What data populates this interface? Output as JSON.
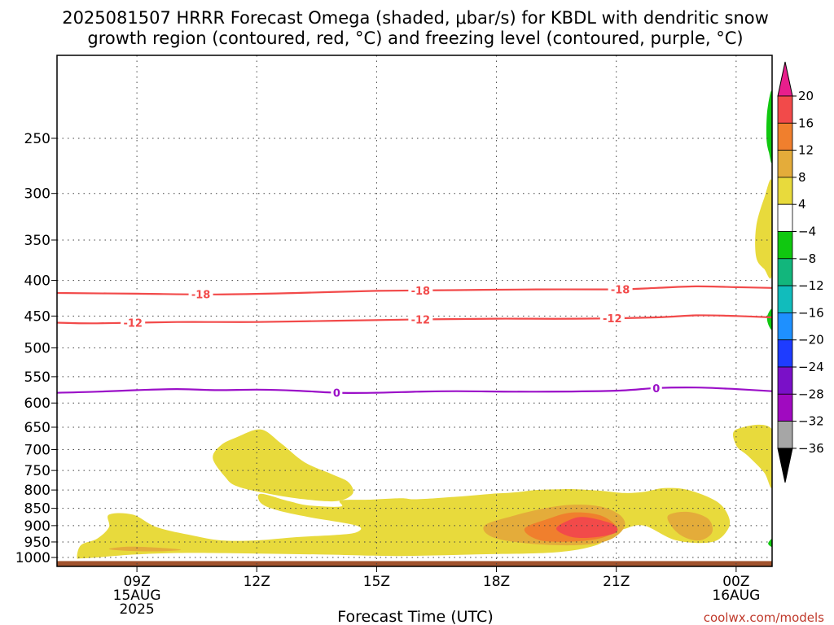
{
  "title_line1": "2025081507 HRRR Forecast Omega (shaded, μbar/s) for KBDL with dendritic snow",
  "title_line2": "growth region (contoured, red, °C) and freezing level (contoured, purple, °C)",
  "credit": "coolwx.com/models",
  "chart_data": {
    "type": "contour",
    "title": "2025081507 HRRR Forecast Omega (shaded, μbar/s) for KBDL with dendritic snow growth region (contoured, red, °C) and freezing level (contoured, purple, °C)",
    "xlabel": "Forecast Time (UTC)",
    "ylabel": "",
    "xlim": [
      7,
      24.9
    ],
    "ylim": [
      1030,
      190
    ],
    "y_ticks": [
      250,
      300,
      350,
      400,
      450,
      500,
      550,
      600,
      650,
      700,
      750,
      800,
      850,
      900,
      950,
      1000
    ],
    "x_ticks": [
      {
        "hour": 9,
        "lines": [
          "09Z",
          "15AUG",
          "2025"
        ]
      },
      {
        "hour": 12,
        "lines": [
          "12Z"
        ]
      },
      {
        "hour": 15,
        "lines": [
          "15Z"
        ]
      },
      {
        "hour": 18,
        "lines": [
          "18Z"
        ]
      },
      {
        "hour": 21,
        "lines": [
          "21Z"
        ]
      },
      {
        "hour": 24,
        "lines": [
          "00Z",
          "16AUG"
        ]
      }
    ],
    "grid": true,
    "colorbar": {
      "labels": [
        "20",
        "16",
        "12",
        "8",
        "4",
        "−4",
        "−8",
        "−12",
        "−16",
        "−20",
        "−24",
        "−28",
        "−32",
        "−36"
      ],
      "colors": [
        "#e81e8c",
        "#f24a4a",
        "#f07f2d",
        "#e4ac3a",
        "#e8da3c",
        "#ffffff",
        "#10c810",
        "#12b67c",
        "#11bcbc",
        "#1e90ff",
        "#1e3cff",
        "#7a10c8",
        "#a00ac0",
        "#a6a6a6",
        "#000000"
      ]
    },
    "contour_lines": [
      {
        "label": "-18",
        "color": "#f24a4a",
        "points": [
          [
            7,
            417
          ],
          [
            9,
            418
          ],
          [
            11,
            419
          ],
          [
            13,
            417
          ],
          [
            15,
            414
          ],
          [
            17,
            413
          ],
          [
            19,
            412
          ],
          [
            21,
            412
          ],
          [
            22,
            410
          ],
          [
            23,
            408
          ],
          [
            24,
            409
          ],
          [
            24.9,
            410
          ]
        ],
        "label_at": [
          10.6,
          16.1,
          21.1
        ]
      },
      {
        "label": "-12",
        "color": "#f24a4a",
        "points": [
          [
            7,
            460
          ],
          [
            8,
            461
          ],
          [
            10,
            459
          ],
          [
            12,
            459
          ],
          [
            14,
            457
          ],
          [
            16,
            455
          ],
          [
            18,
            454
          ],
          [
            20,
            454
          ],
          [
            22,
            452
          ],
          [
            23,
            449
          ],
          [
            24,
            450
          ],
          [
            24.9,
            452
          ]
        ],
        "label_at": [
          8.9,
          16.1,
          20.9
        ]
      },
      {
        "label": "0",
        "color": "#9b10c8",
        "points": [
          [
            7,
            580
          ],
          [
            8,
            578
          ],
          [
            9,
            575
          ],
          [
            10,
            573
          ],
          [
            11,
            575
          ],
          [
            12,
            574
          ],
          [
            13,
            576
          ],
          [
            14,
            580
          ],
          [
            15,
            580
          ],
          [
            16,
            578
          ],
          [
            17,
            577
          ],
          [
            19,
            578
          ],
          [
            21,
            576
          ],
          [
            22,
            571
          ],
          [
            23,
            570
          ],
          [
            24,
            573
          ],
          [
            24.9,
            577
          ]
        ],
        "label_at": [
          14.0,
          22.0
        ]
      }
    ],
    "shaded_regions": [
      {
        "level": "4 to 8",
        "color": "#e8da3c",
        "points": [
          [
            7.5,
            1000
          ],
          [
            7.6,
            960
          ],
          [
            8,
            940
          ],
          [
            8.3,
            905
          ],
          [
            8.3,
            868
          ],
          [
            8.9,
            868
          ],
          [
            9.5,
            905
          ],
          [
            10.4,
            930
          ],
          [
            11.1,
            945
          ],
          [
            12,
            945
          ],
          [
            13.0,
            935
          ],
          [
            14.0,
            928
          ],
          [
            14.5,
            920
          ],
          [
            14.5,
            900
          ],
          [
            13.3,
            875
          ],
          [
            12.5,
            855
          ],
          [
            12.1,
            835
          ],
          [
            12.1,
            810
          ],
          [
            12.8,
            830
          ],
          [
            13.3,
            842
          ],
          [
            14.1,
            845
          ],
          [
            14.1,
            828
          ],
          [
            14.8,
            826
          ],
          [
            15.6,
            822
          ],
          [
            16.0,
            825
          ],
          [
            17.0,
            818
          ],
          [
            17.9,
            810
          ],
          [
            18.4,
            807
          ],
          [
            19.0,
            800
          ],
          [
            19.6,
            798
          ],
          [
            20.0,
            798
          ],
          [
            20.6,
            802
          ],
          [
            21.2,
            808
          ],
          [
            21.7,
            805
          ],
          [
            22.2,
            795
          ],
          [
            22.8,
            800
          ],
          [
            23.5,
            830
          ],
          [
            23.8,
            870
          ],
          [
            23.8,
            910
          ],
          [
            23.4,
            950
          ],
          [
            22.5,
            945
          ],
          [
            21.7,
            900
          ],
          [
            21.2,
            910
          ],
          [
            20.8,
            930
          ],
          [
            20.5,
            960
          ],
          [
            19.5,
            983
          ],
          [
            17.5,
            990
          ],
          [
            15.5,
            995
          ],
          [
            13.5,
            990
          ],
          [
            10.5,
            985
          ],
          [
            9.0,
            990
          ],
          [
            8.0,
            1000
          ],
          [
            7.6,
            1003
          ]
        ]
      },
      {
        "level": "4 to 8",
        "color": "#e8da3c",
        "points": [
          [
            10.9,
            720
          ],
          [
            11.1,
            690
          ],
          [
            11.5,
            672
          ],
          [
            12.1,
            655
          ],
          [
            12.6,
            685
          ],
          [
            13.2,
            730
          ],
          [
            13.9,
            760
          ],
          [
            14.3,
            780
          ],
          [
            14.4,
            810
          ],
          [
            14.0,
            830
          ],
          [
            13.2,
            825
          ],
          [
            12.3,
            810
          ],
          [
            11.5,
            790
          ],
          [
            11.2,
            765
          ]
        ]
      },
      {
        "level": "4 to 8",
        "color": "#e8da3c",
        "points": [
          [
            24.0,
            655
          ],
          [
            24.9,
            655
          ],
          [
            24.9,
            790
          ],
          [
            24.7,
            755
          ],
          [
            24.3,
            715
          ],
          [
            24.0,
            690
          ]
        ]
      },
      {
        "level": "4 to 8",
        "color": "#e8da3c",
        "points": [
          [
            24.9,
            290
          ],
          [
            24.7,
            305
          ],
          [
            24.5,
            335
          ],
          [
            24.5,
            370
          ],
          [
            24.7,
            385
          ],
          [
            24.9,
            390
          ]
        ]
      },
      {
        "level": "8 to 12",
        "color": "#e4ac3a",
        "points": [
          [
            17.7,
            900
          ],
          [
            18.4,
            872
          ],
          [
            19.2,
            850
          ],
          [
            19.9,
            840
          ],
          [
            20.6,
            845
          ],
          [
            21.1,
            870
          ],
          [
            21.2,
            905
          ],
          [
            20.8,
            945
          ],
          [
            20.0,
            960
          ],
          [
            18.8,
            955
          ],
          [
            17.9,
            935
          ]
        ]
      },
      {
        "level": "8 to 12",
        "color": "#e4ac3a",
        "points": [
          [
            8.3,
            972
          ],
          [
            8.8,
            965
          ],
          [
            9.5,
            968
          ],
          [
            10.1,
            975
          ],
          [
            9.5,
            980
          ],
          [
            8.7,
            978
          ]
        ]
      },
      {
        "level": "8 to 12",
        "color": "#e4ac3a",
        "points": [
          [
            22.3,
            870
          ],
          [
            22.8,
            860
          ],
          [
            23.3,
            880
          ],
          [
            23.4,
            920
          ],
          [
            23.1,
            945
          ],
          [
            22.7,
            935
          ],
          [
            22.4,
            905
          ]
        ]
      },
      {
        "level": "12 to 16",
        "color": "#f07f2d",
        "points": [
          [
            18.7,
            910
          ],
          [
            19.3,
            880
          ],
          [
            19.9,
            862
          ],
          [
            20.6,
            870
          ],
          [
            21.0,
            905
          ],
          [
            20.7,
            935
          ],
          [
            20.0,
            948
          ],
          [
            19.1,
            945
          ]
        ]
      },
      {
        "level": "16 to 20",
        "color": "#f24a4a",
        "points": [
          [
            19.5,
            910
          ],
          [
            19.8,
            885
          ],
          [
            20.2,
            875
          ],
          [
            20.9,
            895
          ],
          [
            21.0,
            920
          ],
          [
            20.5,
            935
          ],
          [
            19.9,
            935
          ]
        ]
      },
      {
        "level": "-4 to -8",
        "color": "#10c810",
        "points": [
          [
            24.9,
            215
          ],
          [
            24.78,
            228
          ],
          [
            24.76,
            250
          ],
          [
            24.82,
            262
          ],
          [
            24.9,
            268
          ]
        ]
      },
      {
        "level": "-4 to -8",
        "color": "#10c810",
        "points": [
          [
            24.9,
            440
          ],
          [
            24.78,
            450
          ],
          [
            24.8,
            462
          ],
          [
            24.9,
            470
          ]
        ]
      },
      {
        "level": "-4 to -8",
        "color": "#10c810",
        "points": [
          [
            24.9,
            940
          ],
          [
            24.8,
            955
          ],
          [
            24.9,
            965
          ]
        ]
      }
    ],
    "surface_color": "#a0522d",
    "surface_pressure": 1012
  }
}
